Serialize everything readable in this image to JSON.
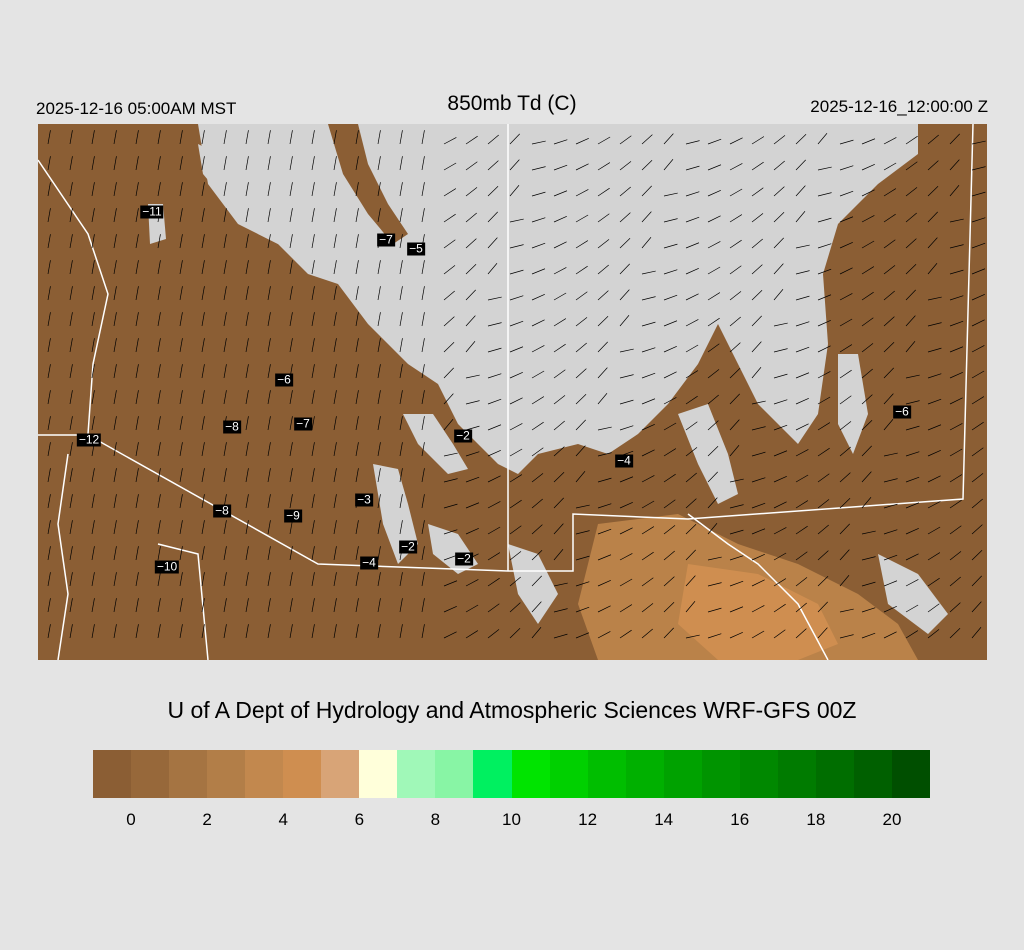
{
  "header": {
    "local_time": "2025-12-16 05:00AM MST",
    "title": "850mb Td (C)",
    "valid_time": "2025-12-16_12:00:00 Z"
  },
  "credit": "U of A Dept of Hydrology and Atmospheric Sciences WRF-GFS 00Z",
  "colorbar": {
    "colors": [
      "#8b5e34",
      "#97683a",
      "#a57442",
      "#b27e48",
      "#c2884e",
      "#cf8e50",
      "#d8a477",
      "#ffffda",
      "#a0f8b8",
      "#88f5a5",
      "#00f060",
      "#00e400",
      "#00d000",
      "#00be00",
      "#00b000",
      "#00a200",
      "#009400",
      "#008800",
      "#007b00",
      "#006e00",
      "#006000",
      "#004f00"
    ],
    "ticks": [
      "0",
      "2",
      "4",
      "6",
      "8",
      "10",
      "12",
      "14",
      "16",
      "18",
      "20"
    ]
  },
  "map": {
    "land_color": "#8b5e34",
    "dry_color": "#d3d3d3",
    "station_values": [
      "−11",
      "−7",
      "−5",
      "−6",
      "−8",
      "−7",
      "−12",
      "−2",
      "−4",
      "−6",
      "−3",
      "−8",
      "−9",
      "−2",
      "−2",
      "−4",
      "−10"
    ]
  }
}
